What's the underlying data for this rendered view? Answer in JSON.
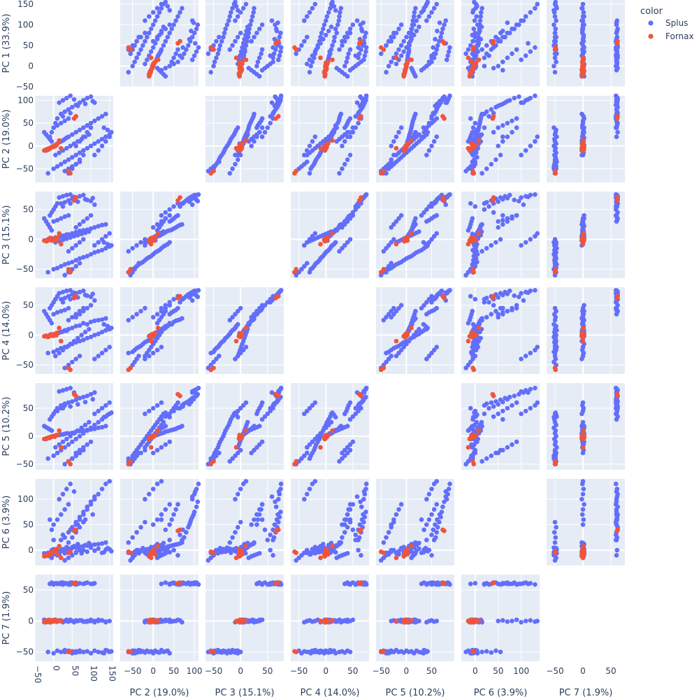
{
  "chart_data": {
    "type": "scatter_matrix",
    "dimensions": [
      {
        "label": "PC 1 (33.9%)",
        "range": [
          -50,
          160
        ],
        "ticks": [
          -50,
          0,
          50,
          100,
          150
        ]
      },
      {
        "label": "PC 2 (19.0%)",
        "range": [
          -80,
          110
        ],
        "ticks": [
          -50,
          0,
          50,
          100
        ]
      },
      {
        "label": "PC 3 (15.1%)",
        "range": [
          -65,
          80
        ],
        "ticks": [
          -50,
          0,
          50
        ]
      },
      {
        "label": "PC 4 (14.0%)",
        "range": [
          -65,
          80
        ],
        "ticks": [
          -50,
          0,
          50
        ]
      },
      {
        "label": "PC 5 (10.2%)",
        "range": [
          -60,
          95
        ],
        "ticks": [
          -50,
          0,
          50
        ]
      },
      {
        "label": "PC 6 (3.9%)",
        "range": [
          -30,
          140
        ],
        "ticks": [
          0,
          50,
          100
        ]
      },
      {
        "label": "PC 7 (1.9%)",
        "range": [
          -65,
          75
        ],
        "ticks": [
          -50,
          0,
          50
        ]
      }
    ],
    "legend": {
      "title": "color",
      "position": "top-right",
      "entries": [
        {
          "name": "Splus",
          "color": "#636efa"
        },
        {
          "name": "Fornax",
          "color": "#ef553b"
        }
      ]
    },
    "series": [
      {
        "name": "Splus",
        "color": "#636efa",
        "points": [
          [
            -20,
            -10,
            -2,
            -2,
            -5,
            -10,
            -2
          ],
          [
            -15,
            -8,
            0,
            -3,
            -3,
            -5,
            0
          ],
          [
            -10,
            -5,
            -1,
            0,
            -2,
            -5,
            -1
          ],
          [
            -5,
            -3,
            1,
            1,
            -1,
            0,
            1
          ],
          [
            0,
            -2,
            0,
            -1,
            0,
            2,
            0
          ],
          [
            5,
            2,
            3,
            2,
            1,
            -2,
            2
          ],
          [
            10,
            5,
            -2,
            3,
            2,
            -3,
            -1
          ],
          [
            20,
            10,
            5,
            5,
            3,
            0,
            1
          ],
          [
            30,
            15,
            6,
            8,
            4,
            -5,
            0
          ],
          [
            40,
            20,
            8,
            10,
            5,
            3,
            -1
          ],
          [
            -10,
            -5,
            2,
            -1,
            -3,
            -8,
            -2
          ],
          [
            0,
            0,
            -1,
            0,
            0,
            -4,
            1
          ],
          [
            15,
            8,
            4,
            4,
            2,
            -6,
            0
          ],
          [
            25,
            12,
            6,
            6,
            3,
            -2,
            -2
          ],
          [
            35,
            18,
            8,
            7,
            5,
            2,
            2
          ],
          [
            60,
            30,
            12,
            15,
            8,
            5,
            1
          ],
          [
            80,
            40,
            15,
            20,
            10,
            8,
            -1
          ],
          [
            100,
            50,
            18,
            22,
            12,
            10,
            0
          ],
          [
            120,
            60,
            22,
            25,
            15,
            12,
            2
          ],
          [
            140,
            70,
            25,
            28,
            18,
            15,
            -2
          ],
          [
            50,
            25,
            10,
            12,
            6,
            6,
            0
          ],
          [
            70,
            35,
            14,
            16,
            9,
            7,
            1
          ],
          [
            90,
            45,
            16,
            18,
            11,
            9,
            -1
          ],
          [
            110,
            55,
            20,
            24,
            13,
            11,
            0
          ],
          [
            130,
            65,
            24,
            26,
            16,
            13,
            1
          ],
          [
            -15,
            -60,
            -55,
            -30,
            -40,
            -5,
            -50
          ],
          [
            0,
            -50,
            -50,
            -28,
            -35,
            -8,
            -52
          ],
          [
            10,
            -45,
            -48,
            -25,
            -30,
            -3,
            -48
          ],
          [
            20,
            -40,
            -45,
            -22,
            -25,
            0,
            -50
          ],
          [
            30,
            -35,
            -42,
            -20,
            -20,
            -6,
            -47
          ],
          [
            40,
            -30,
            -40,
            -18,
            -15,
            -2,
            -50
          ],
          [
            50,
            -25,
            -38,
            -15,
            -10,
            4,
            -49
          ],
          [
            60,
            -20,
            -35,
            -12,
            -5,
            -4,
            -51
          ],
          [
            70,
            -15,
            -32,
            -10,
            0,
            2,
            -48
          ],
          [
            80,
            -10,
            -30,
            -8,
            5,
            0,
            -50
          ],
          [
            90,
            -5,
            -28,
            -5,
            10,
            -3,
            -49
          ],
          [
            100,
            0,
            -25,
            -3,
            15,
            5,
            -52
          ],
          [
            110,
            5,
            -22,
            0,
            20,
            -1,
            -48
          ],
          [
            120,
            10,
            -20,
            2,
            25,
            3,
            -50
          ],
          [
            130,
            15,
            -18,
            5,
            30,
            -5,
            -51
          ],
          [
            140,
            20,
            -15,
            8,
            35,
            1,
            -47
          ],
          [
            150,
            25,
            -12,
            10,
            40,
            2,
            -50
          ],
          [
            155,
            30,
            -10,
            12,
            42,
            -2,
            -49
          ],
          [
            145,
            35,
            -8,
            15,
            38,
            4,
            -48
          ],
          [
            135,
            40,
            -5,
            18,
            34,
            -4,
            -52
          ],
          [
            20,
            70,
            60,
            60,
            55,
            20,
            60
          ],
          [
            30,
            75,
            62,
            62,
            58,
            25,
            61
          ],
          [
            40,
            80,
            65,
            65,
            60,
            35,
            60
          ],
          [
            50,
            85,
            68,
            68,
            62,
            45,
            62
          ],
          [
            60,
            90,
            70,
            70,
            65,
            55,
            59
          ],
          [
            70,
            95,
            72,
            72,
            68,
            65,
            61
          ],
          [
            80,
            100,
            74,
            74,
            70,
            75,
            60
          ],
          [
            90,
            105,
            66,
            66,
            72,
            85,
            62
          ],
          [
            100,
            108,
            64,
            64,
            75,
            95,
            60
          ],
          [
            110,
            95,
            58,
            58,
            78,
            105,
            61
          ],
          [
            25,
            65,
            55,
            55,
            50,
            30,
            59
          ],
          [
            45,
            72,
            60,
            60,
            53,
            40,
            62
          ],
          [
            65,
            88,
            63,
            63,
            57,
            50,
            60
          ],
          [
            85,
            92,
            67,
            67,
            61,
            60,
            61
          ],
          [
            105,
            98,
            69,
            69,
            66,
            70,
            60
          ],
          [
            0,
            40,
            30,
            35,
            40,
            50,
            60
          ],
          [
            10,
            45,
            32,
            38,
            45,
            60,
            61
          ],
          [
            20,
            50,
            35,
            40,
            50,
            70,
            62
          ],
          [
            30,
            55,
            38,
            42,
            55,
            80,
            60
          ],
          [
            40,
            60,
            40,
            45,
            60,
            90,
            59
          ],
          [
            5,
            -20,
            -5,
            -35,
            -20,
            -5,
            0
          ],
          [
            15,
            -15,
            -3,
            -30,
            -15,
            -8,
            1
          ],
          [
            25,
            -10,
            -1,
            -25,
            -10,
            2,
            -1
          ],
          [
            35,
            -5,
            1,
            -20,
            -5,
            6,
            0
          ],
          [
            45,
            0,
            3,
            -15,
            0,
            -4,
            2
          ],
          [
            55,
            5,
            5,
            -10,
            5,
            8,
            -2
          ],
          [
            65,
            10,
            7,
            -5,
            10,
            12,
            0
          ],
          [
            75,
            15,
            9,
            0,
            15,
            -6,
            1
          ],
          [
            85,
            20,
            11,
            5,
            20,
            10,
            -1
          ],
          [
            95,
            25,
            13,
            10,
            25,
            14,
            0
          ],
          [
            -10,
            20,
            40,
            45,
            30,
            60,
            60
          ],
          [
            -5,
            30,
            45,
            50,
            35,
            40,
            62
          ],
          [
            0,
            40,
            50,
            55,
            40,
            20,
            59
          ],
          [
            5,
            50,
            55,
            60,
            45,
            0,
            61
          ],
          [
            10,
            60,
            60,
            65,
            50,
            -10,
            60
          ],
          [
            30,
            -55,
            -60,
            -55,
            -50,
            -20,
            -50
          ],
          [
            40,
            -50,
            -55,
            -50,
            -45,
            -15,
            -48
          ],
          [
            50,
            -45,
            -50,
            -45,
            -40,
            -10,
            -52
          ],
          [
            60,
            -40,
            -45,
            -40,
            -35,
            -5,
            -49
          ],
          [
            70,
            -35,
            -40,
            -35,
            -30,
            0,
            -50
          ],
          [
            60,
            0,
            20,
            30,
            -30,
            50,
            0
          ],
          [
            70,
            10,
            25,
            35,
            -25,
            60,
            1
          ],
          [
            80,
            20,
            30,
            40,
            -20,
            70,
            -1
          ],
          [
            90,
            30,
            35,
            45,
            -15,
            80,
            0
          ],
          [
            100,
            40,
            40,
            50,
            -10,
            90,
            2
          ],
          [
            110,
            -20,
            -10,
            -40,
            40,
            100,
            -2
          ],
          [
            120,
            -10,
            -5,
            -35,
            45,
            110,
            0
          ],
          [
            130,
            0,
            0,
            -30,
            50,
            120,
            1
          ],
          [
            140,
            10,
            5,
            -25,
            55,
            130,
            -1
          ],
          [
            150,
            20,
            10,
            -20,
            60,
            135,
            0
          ],
          [
            -5,
            10,
            15,
            20,
            10,
            -15,
            0
          ],
          [
            -10,
            15,
            20,
            25,
            12,
            -12,
            1
          ],
          [
            -15,
            20,
            25,
            30,
            14,
            -10,
            -1
          ],
          [
            -20,
            25,
            30,
            35,
            16,
            -8,
            0
          ],
          [
            -25,
            30,
            35,
            40,
            18,
            -6,
            2
          ],
          [
            40,
            -60,
            -20,
            25,
            -45,
            15,
            -50
          ],
          [
            50,
            -50,
            -15,
            30,
            -40,
            25,
            -49
          ],
          [
            60,
            -40,
            -10,
            35,
            -35,
            35,
            -51
          ],
          [
            70,
            -30,
            -5,
            40,
            -30,
            45,
            -48
          ],
          [
            80,
            -20,
            0,
            45,
            -25,
            55,
            -50
          ],
          [
            15,
            95,
            70,
            70,
            80,
            100,
            60
          ],
          [
            25,
            100,
            72,
            72,
            82,
            110,
            62
          ],
          [
            35,
            105,
            74,
            74,
            84,
            120,
            61
          ],
          [
            45,
            110,
            75,
            75,
            86,
            130,
            59
          ],
          [
            55,
            102,
            71,
            71,
            78,
            115,
            60
          ]
        ]
      },
      {
        "name": "Fornax",
        "color": "#ef553b",
        "points": [
          [
            -25,
            -10,
            -2,
            -2,
            -5,
            -12,
            -2
          ],
          [
            -20,
            -8,
            -3,
            -1,
            -4,
            -10,
            0
          ],
          [
            -15,
            -6,
            -1,
            -3,
            -3,
            -8,
            -1
          ],
          [
            -10,
            -5,
            0,
            0,
            -2,
            -6,
            1
          ],
          [
            -5,
            -3,
            -2,
            1,
            -1,
            -4,
            0
          ],
          [
            0,
            -2,
            0,
            -1,
            0,
            -2,
            -1
          ],
          [
            5,
            0,
            -1,
            0,
            1,
            0,
            0
          ],
          [
            -12,
            -7,
            1,
            -2,
            -3,
            -9,
            2
          ],
          [
            -8,
            -4,
            -1,
            1,
            -2,
            -5,
            -2
          ],
          [
            -2,
            -1,
            0,
            -1,
            0,
            -3,
            1
          ],
          [
            3,
            1,
            1,
            2,
            -1,
            -1,
            0
          ],
          [
            8,
            2,
            -2,
            0,
            2,
            2,
            -1
          ],
          [
            -18,
            -9,
            -3,
            -2,
            -4,
            -11,
            1
          ],
          [
            -6,
            -3,
            2,
            1,
            -1,
            -6,
            0
          ],
          [
            2,
            -1,
            -1,
            0,
            0,
            -2,
            2
          ],
          [
            15,
            12,
            10,
            12,
            10,
            8,
            1
          ],
          [
            40,
            -55,
            -50,
            -55,
            -45,
            -5,
            -50
          ],
          [
            45,
            -60,
            -55,
            -58,
            -50,
            -3,
            -49
          ],
          [
            60,
            65,
            70,
            65,
            72,
            40,
            62
          ],
          [
            55,
            60,
            65,
            62,
            75,
            38,
            61
          ],
          [
            20,
            -5,
            -8,
            -10,
            -20,
            -15,
            0
          ],
          [
            10,
            5,
            3,
            4,
            2,
            -8,
            -1
          ]
        ]
      }
    ]
  }
}
